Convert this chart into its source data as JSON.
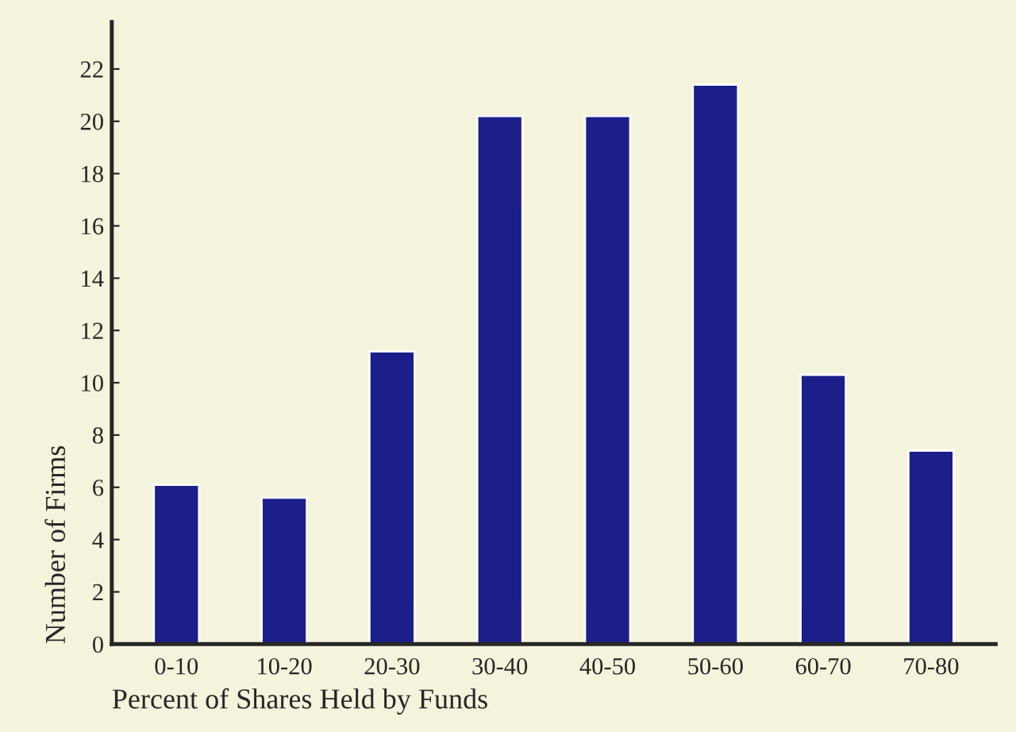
{
  "chart_data": {
    "type": "bar",
    "xlabel": "Percent of Shares Held by Funds",
    "ylabel": "Number of Firms",
    "categories": [
      "0-10",
      "10-20",
      "20-30",
      "30-40",
      "40-50",
      "50-60",
      "60-70",
      "70-80"
    ],
    "values": [
      6.1,
      5.6,
      11.2,
      20.2,
      20.2,
      21.4,
      10.3,
      7.4
    ],
    "color": "#1c1f8a",
    "ylim": [
      0,
      23.8
    ],
    "yticks": [
      0,
      2,
      4,
      6,
      8,
      10,
      12,
      14,
      16,
      18,
      20,
      22
    ],
    "grid": false,
    "legend": false
  }
}
